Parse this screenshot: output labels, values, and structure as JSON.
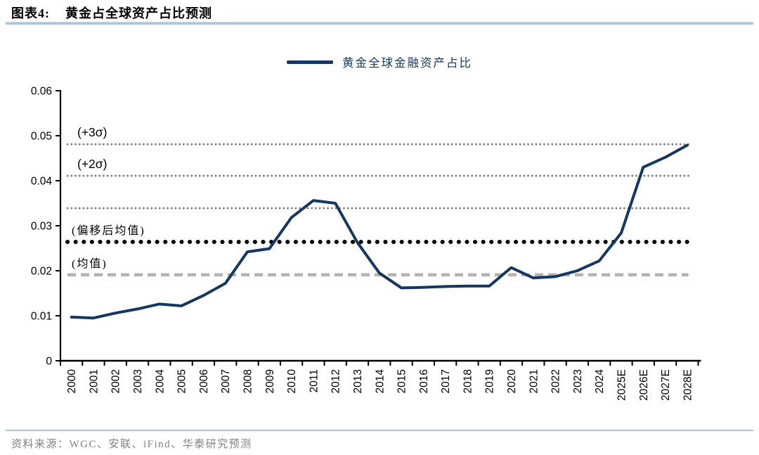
{
  "header": {
    "figure_label": "图表4:",
    "title": "黄金占全球资产占比预测"
  },
  "legend": {
    "label": "黄金全球金融资产占比"
  },
  "footer": {
    "source": "资料来源：WGC、安联、iFind、华泰研究预测"
  },
  "colors": {
    "line": "#17375e",
    "ref_gray": "#7f7f7f",
    "ref_black": "#000000",
    "mean_gray": "#b3b3b3",
    "axis": "#000000",
    "rule_blue": "#aec4d8",
    "source_text": "#828282"
  },
  "chart_data": {
    "type": "line",
    "title": "黄金占全球资产占比预测",
    "legend_position": "top-center",
    "grid": false,
    "categories": [
      "2000",
      "2001",
      "2002",
      "2003",
      "2004",
      "2005",
      "2006",
      "2007",
      "2008",
      "2009",
      "2010",
      "2011",
      "2012",
      "2013",
      "2014",
      "2015",
      "2016",
      "2017",
      "2018",
      "2019",
      "2020",
      "2021",
      "2022",
      "2023",
      "2024",
      "2025E",
      "2026E",
      "2027E",
      "2028E"
    ],
    "series": [
      {
        "name": "黄金全球金融资产占比",
        "values": [
          0.0097,
          0.0095,
          0.0106,
          0.0115,
          0.0126,
          0.0122,
          0.0145,
          0.0172,
          0.0242,
          0.0249,
          0.0318,
          0.0356,
          0.035,
          0.0263,
          0.0195,
          0.0162,
          0.0163,
          0.0165,
          0.0166,
          0.0166,
          0.0207,
          0.0184,
          0.0187,
          0.02,
          0.0222,
          0.0284,
          0.043,
          0.0452,
          0.0479
        ]
      }
    ],
    "ylim": [
      0,
      0.06
    ],
    "y_tick_labels": [
      "0",
      "0.01",
      "0.02",
      "0.03",
      "0.04",
      "0.05",
      "0.06"
    ],
    "ref_lines": [
      {
        "label": "(+3σ)",
        "value": 0.0481,
        "style": "dot-fine"
      },
      {
        "label": "(+2σ)",
        "value": 0.0411,
        "style": "dot-fine"
      },
      {
        "label": "",
        "value": 0.0339,
        "style": "dot-fine"
      },
      {
        "label": "(偏移后均值)",
        "value": 0.0264,
        "style": "dot-bold"
      },
      {
        "label": "(均值)",
        "value": 0.0191,
        "style": "dash"
      }
    ]
  }
}
